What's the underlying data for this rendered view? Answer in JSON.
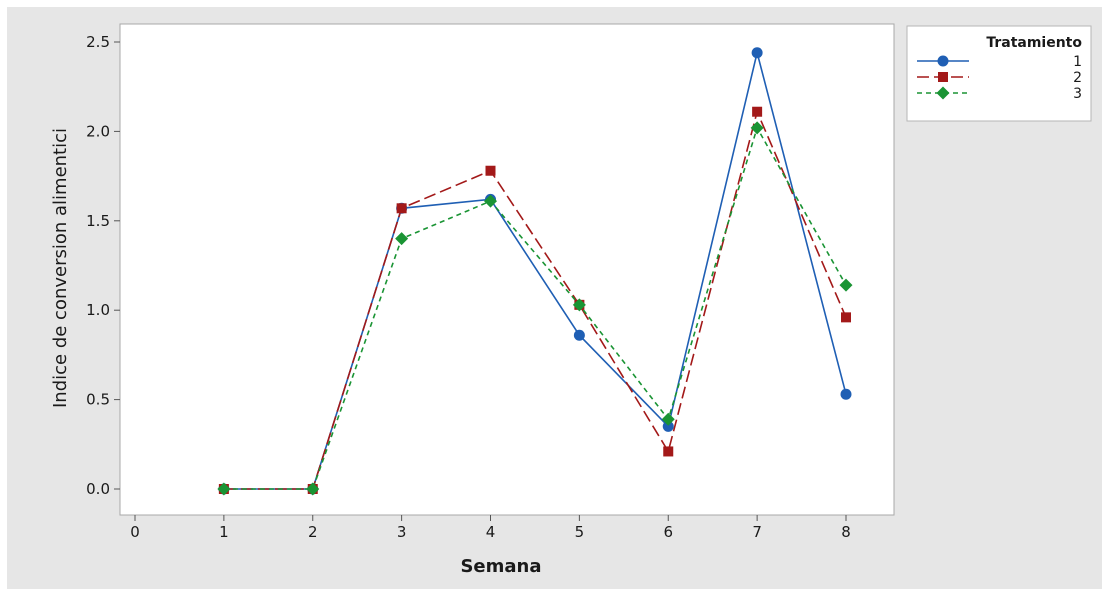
{
  "chart_data": {
    "type": "line",
    "title": "",
    "xlabel": "Semana",
    "ylabel": "Indice de conversion alimentici",
    "xlim": [
      0,
      8
    ],
    "ylim": [
      0,
      2.5
    ],
    "x_ticks": [
      "0",
      "1",
      "2",
      "3",
      "4",
      "5",
      "6",
      "7",
      "8"
    ],
    "y_ticks": [
      "0.0",
      "0.5",
      "1.0",
      "1.5",
      "2.0",
      "2.5"
    ],
    "x": [
      1,
      2,
      3,
      4,
      5,
      6,
      7,
      8
    ],
    "grid": false,
    "legend": {
      "title": "Tratamiento",
      "placement": "top-right outside"
    },
    "series": [
      {
        "name": "1",
        "values": [
          0.0,
          0.0,
          1.57,
          1.62,
          0.86,
          0.35,
          2.44,
          0.53
        ],
        "color": "#1f5fb4",
        "line_style": "solid",
        "marker": "circle"
      },
      {
        "name": "2",
        "values": [
          0.0,
          0.0,
          1.57,
          1.78,
          1.03,
          0.21,
          2.11,
          0.96
        ],
        "color": "#a31919",
        "line_style": "long-dash",
        "marker": "square"
      },
      {
        "name": "3",
        "values": [
          0.0,
          0.0,
          1.4,
          1.61,
          1.03,
          0.39,
          2.02,
          1.14
        ],
        "color": "#1a9434",
        "line_style": "short-dash",
        "marker": "diamond"
      }
    ]
  }
}
